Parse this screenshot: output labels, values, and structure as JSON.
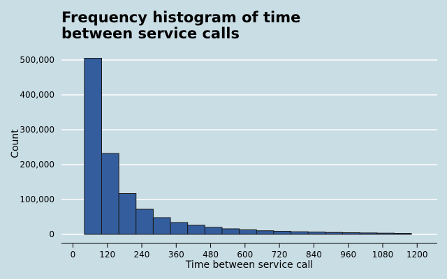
{
  "chart_data": {
    "type": "bar",
    "title": "Frequency histogram of time\nbetween service calls",
    "xlabel": "Time between service call",
    "ylabel": "Count",
    "bin_edges": [
      40,
      100,
      160,
      220,
      280,
      340,
      400,
      460,
      520,
      580,
      640,
      700,
      760,
      820,
      880,
      940,
      1000,
      1060,
      1120,
      1180
    ],
    "values": [
      505000,
      232000,
      117000,
      72000,
      48000,
      34000,
      26000,
      20000,
      16000,
      13000,
      10500,
      9000,
      7500,
      6500,
      5500,
      4800,
      4200,
      3600,
      3000
    ],
    "xlim": [
      -40,
      1270
    ],
    "ylim": [
      0,
      520000
    ],
    "x_ticks": [
      0,
      120,
      240,
      360,
      480,
      600,
      720,
      840,
      960,
      1080,
      1200
    ],
    "x_tick_labels": [
      "0",
      "120",
      "240",
      "360",
      "480",
      "600",
      "720",
      "840",
      "960",
      "1080",
      "1200"
    ],
    "y_ticks": [
      0,
      100000,
      200000,
      300000,
      400000,
      500000
    ],
    "y_tick_labels": [
      "0",
      "100,000",
      "200,000",
      "300,000",
      "400,000",
      "500,000"
    ],
    "grid": true,
    "legend": "none"
  },
  "colors": {
    "background": "#c9dde5",
    "bar_fill": "#335d9d",
    "bar_edge": "#1a1a1a",
    "grid": "#ffffff",
    "axis": "#000000"
  }
}
